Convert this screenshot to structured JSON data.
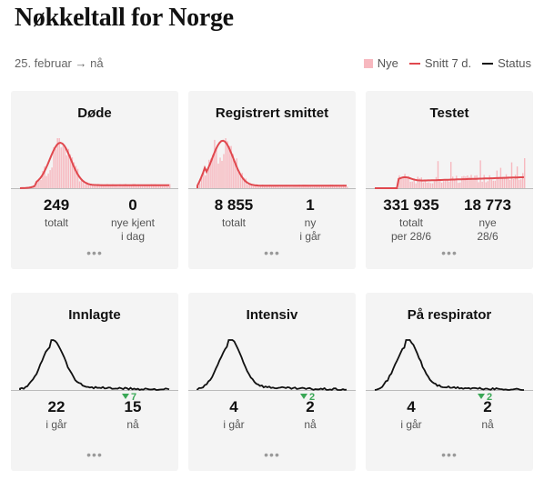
{
  "page": {
    "title": "Nøkkeltall for Norge",
    "date_range": "25. februar → nå"
  },
  "legend": [
    {
      "label": "Nye",
      "color": "#f7b8bf",
      "kind": "box"
    },
    {
      "label": "Snitt 7 d.",
      "color": "#e0484e",
      "kind": "line"
    },
    {
      "label": "Status",
      "color": "#111111",
      "kind": "line"
    }
  ],
  "colors": {
    "new_bars": "#f7b8bf",
    "avg_line": "#e0484e",
    "status_line": "#111111",
    "delta_green": "#3aa756"
  },
  "cards": [
    {
      "title": "Døde",
      "chart": "deaths",
      "left": {
        "value": "249",
        "label": "totalt"
      },
      "right": {
        "value": "0",
        "label": "nye kjent\ni dag"
      },
      "delta": "",
      "more": "•••"
    },
    {
      "title": "Registrert smittet",
      "chart": "cases",
      "left": {
        "value": "8 855",
        "label": "totalt"
      },
      "right": {
        "value": "1",
        "label": "ny\ni går"
      },
      "delta": "",
      "more": "•••"
    },
    {
      "title": "Testet",
      "chart": "tests",
      "left": {
        "value": "331 935",
        "label": "totalt\nper 28/6"
      },
      "right": {
        "value": "18 773",
        "label": "nye\n28/6"
      },
      "delta": "",
      "more": "•••"
    },
    {
      "title": "Innlagte",
      "chart": "hospital",
      "left": {
        "value": "22",
        "label": "i går"
      },
      "right": {
        "value": "15",
        "label": "nå"
      },
      "delta": "7",
      "more": "•••"
    },
    {
      "title": "Intensiv",
      "chart": "icu",
      "left": {
        "value": "4",
        "label": "i går"
      },
      "right": {
        "value": "2",
        "label": "nå"
      },
      "delta": "2",
      "more": "•••"
    },
    {
      "title": "På respirator",
      "chart": "resp",
      "left": {
        "value": "4",
        "label": "i går"
      },
      "right": {
        "value": "2",
        "label": "nå"
      },
      "delta": "2",
      "more": "•••"
    }
  ]
}
